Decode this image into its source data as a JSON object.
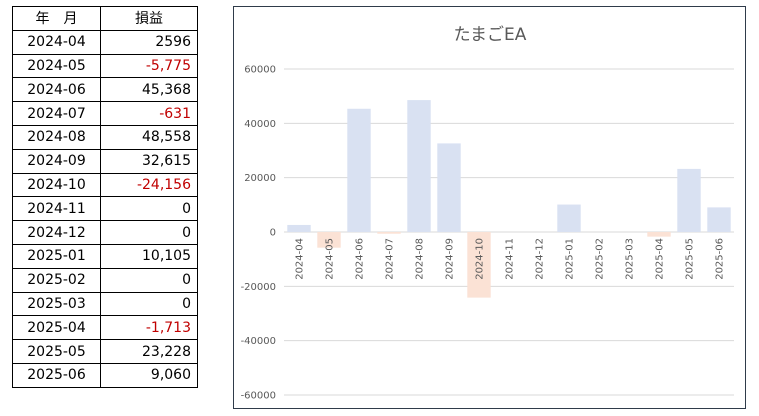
{
  "table": {
    "headers": {
      "month": "年　月",
      "pl": "損益"
    },
    "rows": [
      {
        "month": "2024-04",
        "pl": "2596",
        "negative": false
      },
      {
        "month": "2024-05",
        "pl": "-5,775",
        "negative": true
      },
      {
        "month": "2024-06",
        "pl": "45,368",
        "negative": false
      },
      {
        "month": "2024-07",
        "pl": "-631",
        "negative": true
      },
      {
        "month": "2024-08",
        "pl": "48,558",
        "negative": false
      },
      {
        "month": "2024-09",
        "pl": "32,615",
        "negative": false
      },
      {
        "month": "2024-10",
        "pl": "-24,156",
        "negative": true
      },
      {
        "month": "2024-11",
        "pl": "0",
        "negative": false
      },
      {
        "month": "2024-12",
        "pl": "0",
        "negative": false
      },
      {
        "month": "2025-01",
        "pl": "10,105",
        "negative": false
      },
      {
        "month": "2025-02",
        "pl": "0",
        "negative": false
      },
      {
        "month": "2025-03",
        "pl": "0",
        "negative": false
      },
      {
        "month": "2025-04",
        "pl": "-1,713",
        "negative": true
      },
      {
        "month": "2025-05",
        "pl": "23,228",
        "negative": false
      },
      {
        "month": "2025-06",
        "pl": "9,060",
        "negative": false
      }
    ]
  },
  "colors": {
    "positive_bar": "#d9e1f2",
    "negative_bar": "#fbe2d5",
    "negative_text": "#c00000"
  },
  "chart_data": {
    "type": "bar",
    "title": "たまごEA",
    "categories": [
      "2024-04",
      "2024-05",
      "2024-06",
      "2024-07",
      "2024-08",
      "2024-09",
      "2024-10",
      "2024-11",
      "2024-12",
      "2025-01",
      "2025-02",
      "2025-03",
      "2025-04",
      "2025-05",
      "2025-06"
    ],
    "values": [
      2596,
      -5775,
      45368,
      -631,
      48558,
      32615,
      -24156,
      0,
      0,
      10105,
      0,
      0,
      -1713,
      23228,
      9060
    ],
    "ylim": [
      -60000,
      60000
    ],
    "yticks": [
      60000,
      40000,
      20000,
      0,
      -20000,
      -40000,
      -60000
    ],
    "ytick_labels": [
      "60000",
      "40000",
      "20000",
      "0",
      "-20000",
      "-40000",
      "-60000"
    ],
    "grid": true,
    "xlabel": "",
    "ylabel": ""
  }
}
